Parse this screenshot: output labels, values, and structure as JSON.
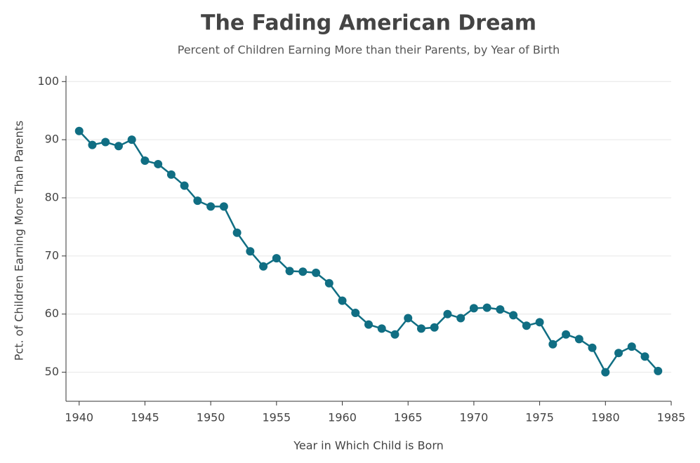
{
  "chart_data": {
    "type": "line",
    "title": "The Fading American Dream",
    "subtitle": "Percent of Children Earning More than their Parents, by Year of Birth",
    "x_label": "Year in Which Child is Born",
    "y_label": "Pct. of Children Earning More Than Parents",
    "x": [
      1940,
      1941,
      1942,
      1943,
      1944,
      1945,
      1946,
      1947,
      1948,
      1949,
      1950,
      1951,
      1952,
      1953,
      1954,
      1955,
      1956,
      1957,
      1958,
      1959,
      1960,
      1961,
      1962,
      1963,
      1964,
      1965,
      1966,
      1967,
      1968,
      1969,
      1970,
      1971,
      1972,
      1973,
      1974,
      1975,
      1976,
      1977,
      1978,
      1979,
      1980,
      1981,
      1982,
      1983,
      1984
    ],
    "series": [
      {
        "color": "#106e83",
        "values": [
          91.5,
          89.1,
          89.6,
          88.9,
          90.0,
          86.4,
          85.8,
          84.0,
          82.1,
          79.5,
          78.5,
          78.5,
          74.0,
          70.8,
          68.2,
          69.6,
          67.4,
          67.3,
          67.1,
          65.3,
          62.3,
          60.2,
          58.2,
          57.5,
          56.5,
          59.3,
          57.5,
          57.7,
          60.0,
          59.3,
          61.0,
          61.1,
          60.8,
          59.8,
          58.0,
          58.6,
          54.8,
          56.5,
          55.7,
          54.2,
          50.0,
          53.3,
          54.4,
          52.7,
          50.2
        ]
      }
    ],
    "xlim": [
      1939,
      1985
    ],
    "xticks": [
      1940,
      1945,
      1950,
      1955,
      1960,
      1965,
      1970,
      1975,
      1980,
      1985
    ],
    "ylim": [
      45,
      101
    ],
    "yticks": [
      50,
      60,
      70,
      80,
      90,
      100
    ],
    "grid": true
  }
}
